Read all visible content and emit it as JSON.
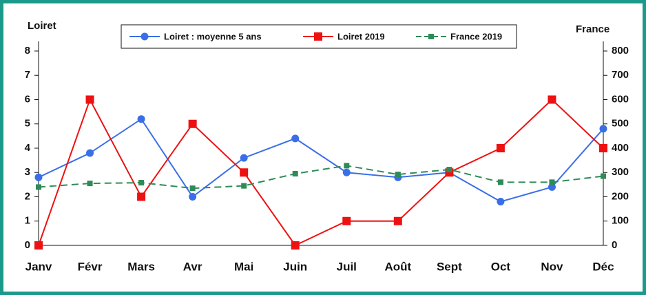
{
  "chart_data": {
    "type": "line",
    "y_label": "Loiret",
    "y2_label": "France",
    "categories": [
      "Janv",
      "Févr",
      "Mars",
      "Avr",
      "Mai",
      "Juin",
      "Juil",
      "Août",
      "Sept",
      "Oct",
      "Nov",
      "Déc"
    ],
    "series": [
      {
        "name": "Loiret : moyenne 5 ans",
        "color": "#3a6ee8",
        "marker": "circle",
        "dashed": false,
        "values": [
          2.8,
          3.8,
          5.2,
          2.0,
          3.6,
          4.4,
          3.0,
          2.8,
          3.0,
          1.8,
          2.4,
          4.8
        ]
      },
      {
        "name": "Loiret 2019",
        "color": "#ee1111",
        "marker": "square",
        "dashed": false,
        "values": [
          0,
          6,
          2,
          5,
          3,
          0,
          1,
          1,
          3,
          4,
          6,
          4
        ]
      },
      {
        "name": "France 2019",
        "color": "#2e8b57",
        "marker": "small-square",
        "dashed": true,
        "axis": "y2",
        "values": [
          240,
          255,
          258,
          235,
          245,
          295,
          328,
          292,
          312,
          260,
          260,
          285
        ]
      }
    ],
    "ylim": [
      0,
      8
    ],
    "yticks": [
      0,
      1,
      2,
      3,
      4,
      5,
      6,
      7,
      8
    ],
    "y2lim": [
      0,
      800
    ],
    "y2ticks": [
      0,
      100,
      200,
      300,
      400,
      500,
      600,
      700,
      800
    ],
    "legend": "top"
  }
}
